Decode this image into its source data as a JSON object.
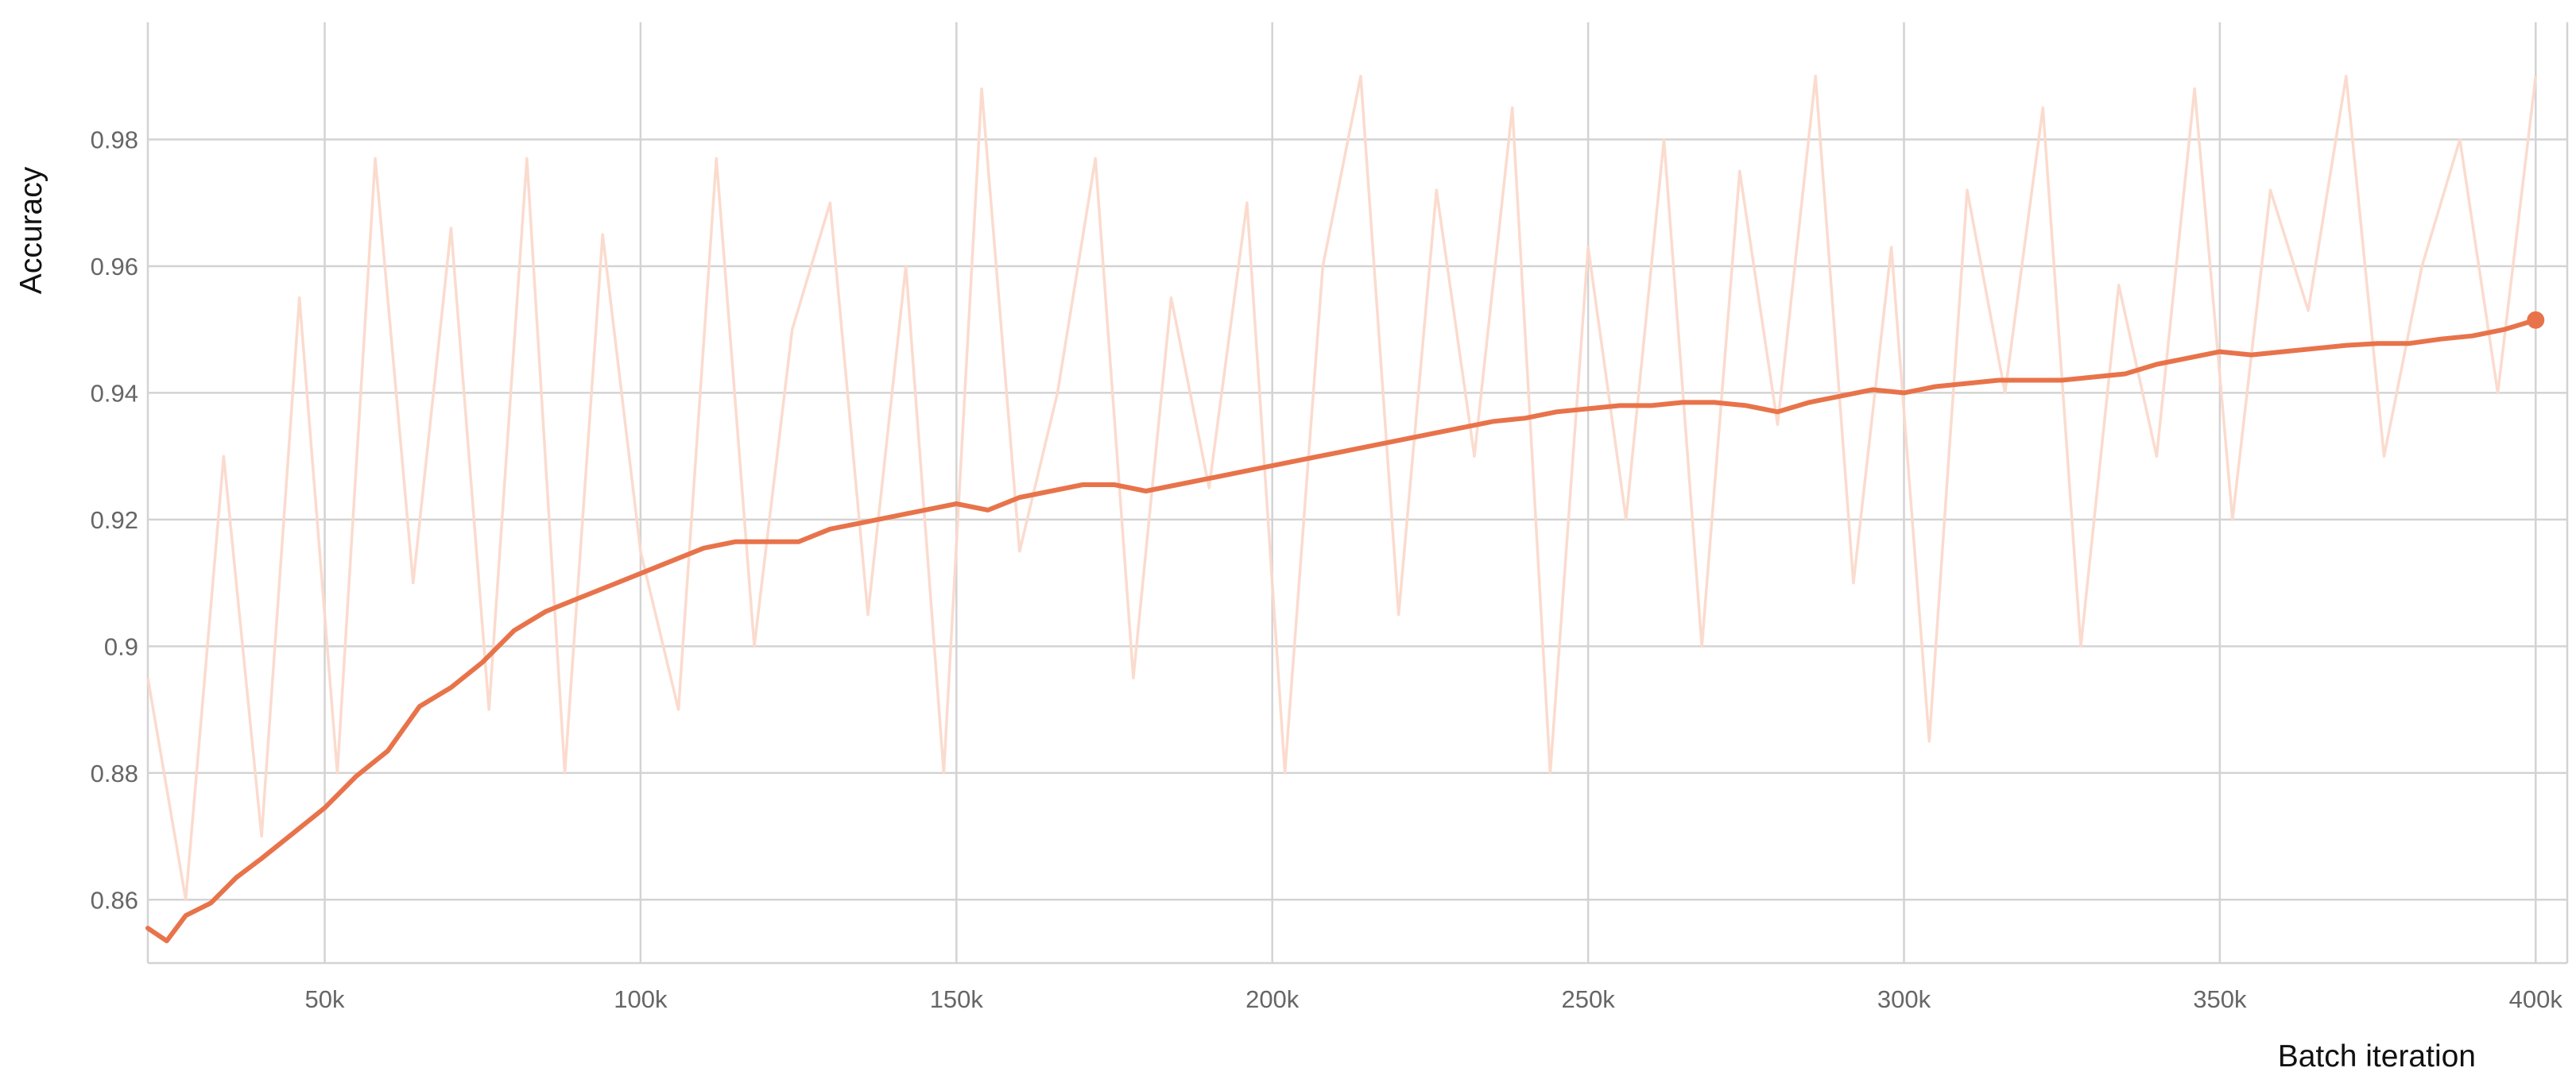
{
  "chart_data": {
    "type": "line",
    "title": "",
    "xlabel": "Batch iteration",
    "ylabel": "Accuracy",
    "xlim": [
      22000,
      405000
    ],
    "ylim": [
      0.85,
      0.9985
    ],
    "grid": true,
    "x_tick_values": [
      50000,
      100000,
      150000,
      200000,
      250000,
      300000,
      350000,
      400000
    ],
    "x_tick_labels": [
      "50k",
      "100k",
      "150k",
      "200k",
      "250k",
      "300k",
      "350k",
      "400k"
    ],
    "y_tick_values": [
      0.86,
      0.88,
      0.9,
      0.92,
      0.94,
      0.96,
      0.98
    ],
    "y_tick_labels": [
      "0.86",
      "0.88",
      "0.9",
      "0.92",
      "0.94",
      "0.96",
      "0.98"
    ],
    "series": [
      {
        "role": "raw",
        "color": "#fbd9cb",
        "x": [
          22000,
          28000,
          34000,
          40000,
          46000,
          52000,
          58000,
          64000,
          70000,
          76000,
          82000,
          88000,
          94000,
          100000,
          106000,
          112000,
          118000,
          124000,
          130000,
          136000,
          142000,
          148000,
          154000,
          160000,
          166000,
          172000,
          178000,
          184000,
          190000,
          196000,
          202000,
          208000,
          214000,
          220000,
          226000,
          232000,
          238000,
          244000,
          250000,
          256000,
          262000,
          268000,
          274000,
          280000,
          286000,
          292000,
          298000,
          304000,
          310000,
          316000,
          322000,
          328000,
          334000,
          340000,
          346000,
          352000,
          358000,
          364000,
          370000,
          376000,
          382000,
          388000,
          394000,
          400000
        ],
        "y": [
          0.895,
          0.86,
          0.93,
          0.87,
          0.955,
          0.88,
          0.977,
          0.91,
          0.966,
          0.89,
          0.977,
          0.88,
          0.965,
          0.915,
          0.89,
          0.977,
          0.9,
          0.95,
          0.97,
          0.905,
          0.96,
          0.88,
          0.988,
          0.915,
          0.94,
          0.977,
          0.895,
          0.955,
          0.925,
          0.97,
          0.88,
          0.96,
          0.99,
          0.905,
          0.972,
          0.93,
          0.985,
          0.88,
          0.963,
          0.92,
          0.98,
          0.9,
          0.975,
          0.935,
          0.99,
          0.91,
          0.963,
          0.885,
          0.972,
          0.94,
          0.985,
          0.9,
          0.957,
          0.93,
          0.988,
          0.92,
          0.972,
          0.953,
          0.99,
          0.93,
          0.96,
          0.98,
          0.94,
          0.99
        ]
      },
      {
        "role": "smoothed",
        "color": "#e8734a",
        "x": [
          22000,
          25000,
          28000,
          32000,
          36000,
          40000,
          45000,
          50000,
          55000,
          60000,
          65000,
          70000,
          75000,
          80000,
          85000,
          90000,
          95000,
          100000,
          105000,
          110000,
          115000,
          120000,
          125000,
          130000,
          135000,
          140000,
          145000,
          150000,
          155000,
          160000,
          165000,
          170000,
          175000,
          180000,
          185000,
          190000,
          195000,
          200000,
          205000,
          210000,
          215000,
          220000,
          225000,
          230000,
          235000,
          240000,
          245000,
          250000,
          255000,
          260000,
          265000,
          270000,
          275000,
          280000,
          285000,
          290000,
          295000,
          300000,
          305000,
          310000,
          315000,
          320000,
          325000,
          330000,
          335000,
          340000,
          345000,
          350000,
          355000,
          360000,
          365000,
          370000,
          375000,
          380000,
          385000,
          390000,
          395000,
          400000
        ],
        "y": [
          0.8555,
          0.8535,
          0.8575,
          0.8595,
          0.8635,
          0.8665,
          0.8705,
          0.8745,
          0.8795,
          0.8835,
          0.8905,
          0.8935,
          0.8975,
          0.9025,
          0.9055,
          0.9075,
          0.9095,
          0.9115,
          0.9135,
          0.9155,
          0.9165,
          0.9165,
          0.9165,
          0.9185,
          0.9195,
          0.9205,
          0.9215,
          0.9225,
          0.9215,
          0.9235,
          0.9245,
          0.9255,
          0.9255,
          0.9245,
          0.9255,
          0.9265,
          0.9275,
          0.9285,
          0.9295,
          0.9305,
          0.9315,
          0.9325,
          0.9335,
          0.9345,
          0.9355,
          0.936,
          0.937,
          0.9375,
          0.938,
          0.938,
          0.9385,
          0.9385,
          0.938,
          0.937,
          0.9385,
          0.9395,
          0.9405,
          0.94,
          0.941,
          0.9415,
          0.942,
          0.942,
          0.942,
          0.9425,
          0.943,
          0.9445,
          0.9455,
          0.9465,
          0.946,
          0.9465,
          0.947,
          0.9475,
          0.9478,
          0.9478,
          0.9485,
          0.949,
          0.95,
          0.9515
        ]
      }
    ]
  }
}
